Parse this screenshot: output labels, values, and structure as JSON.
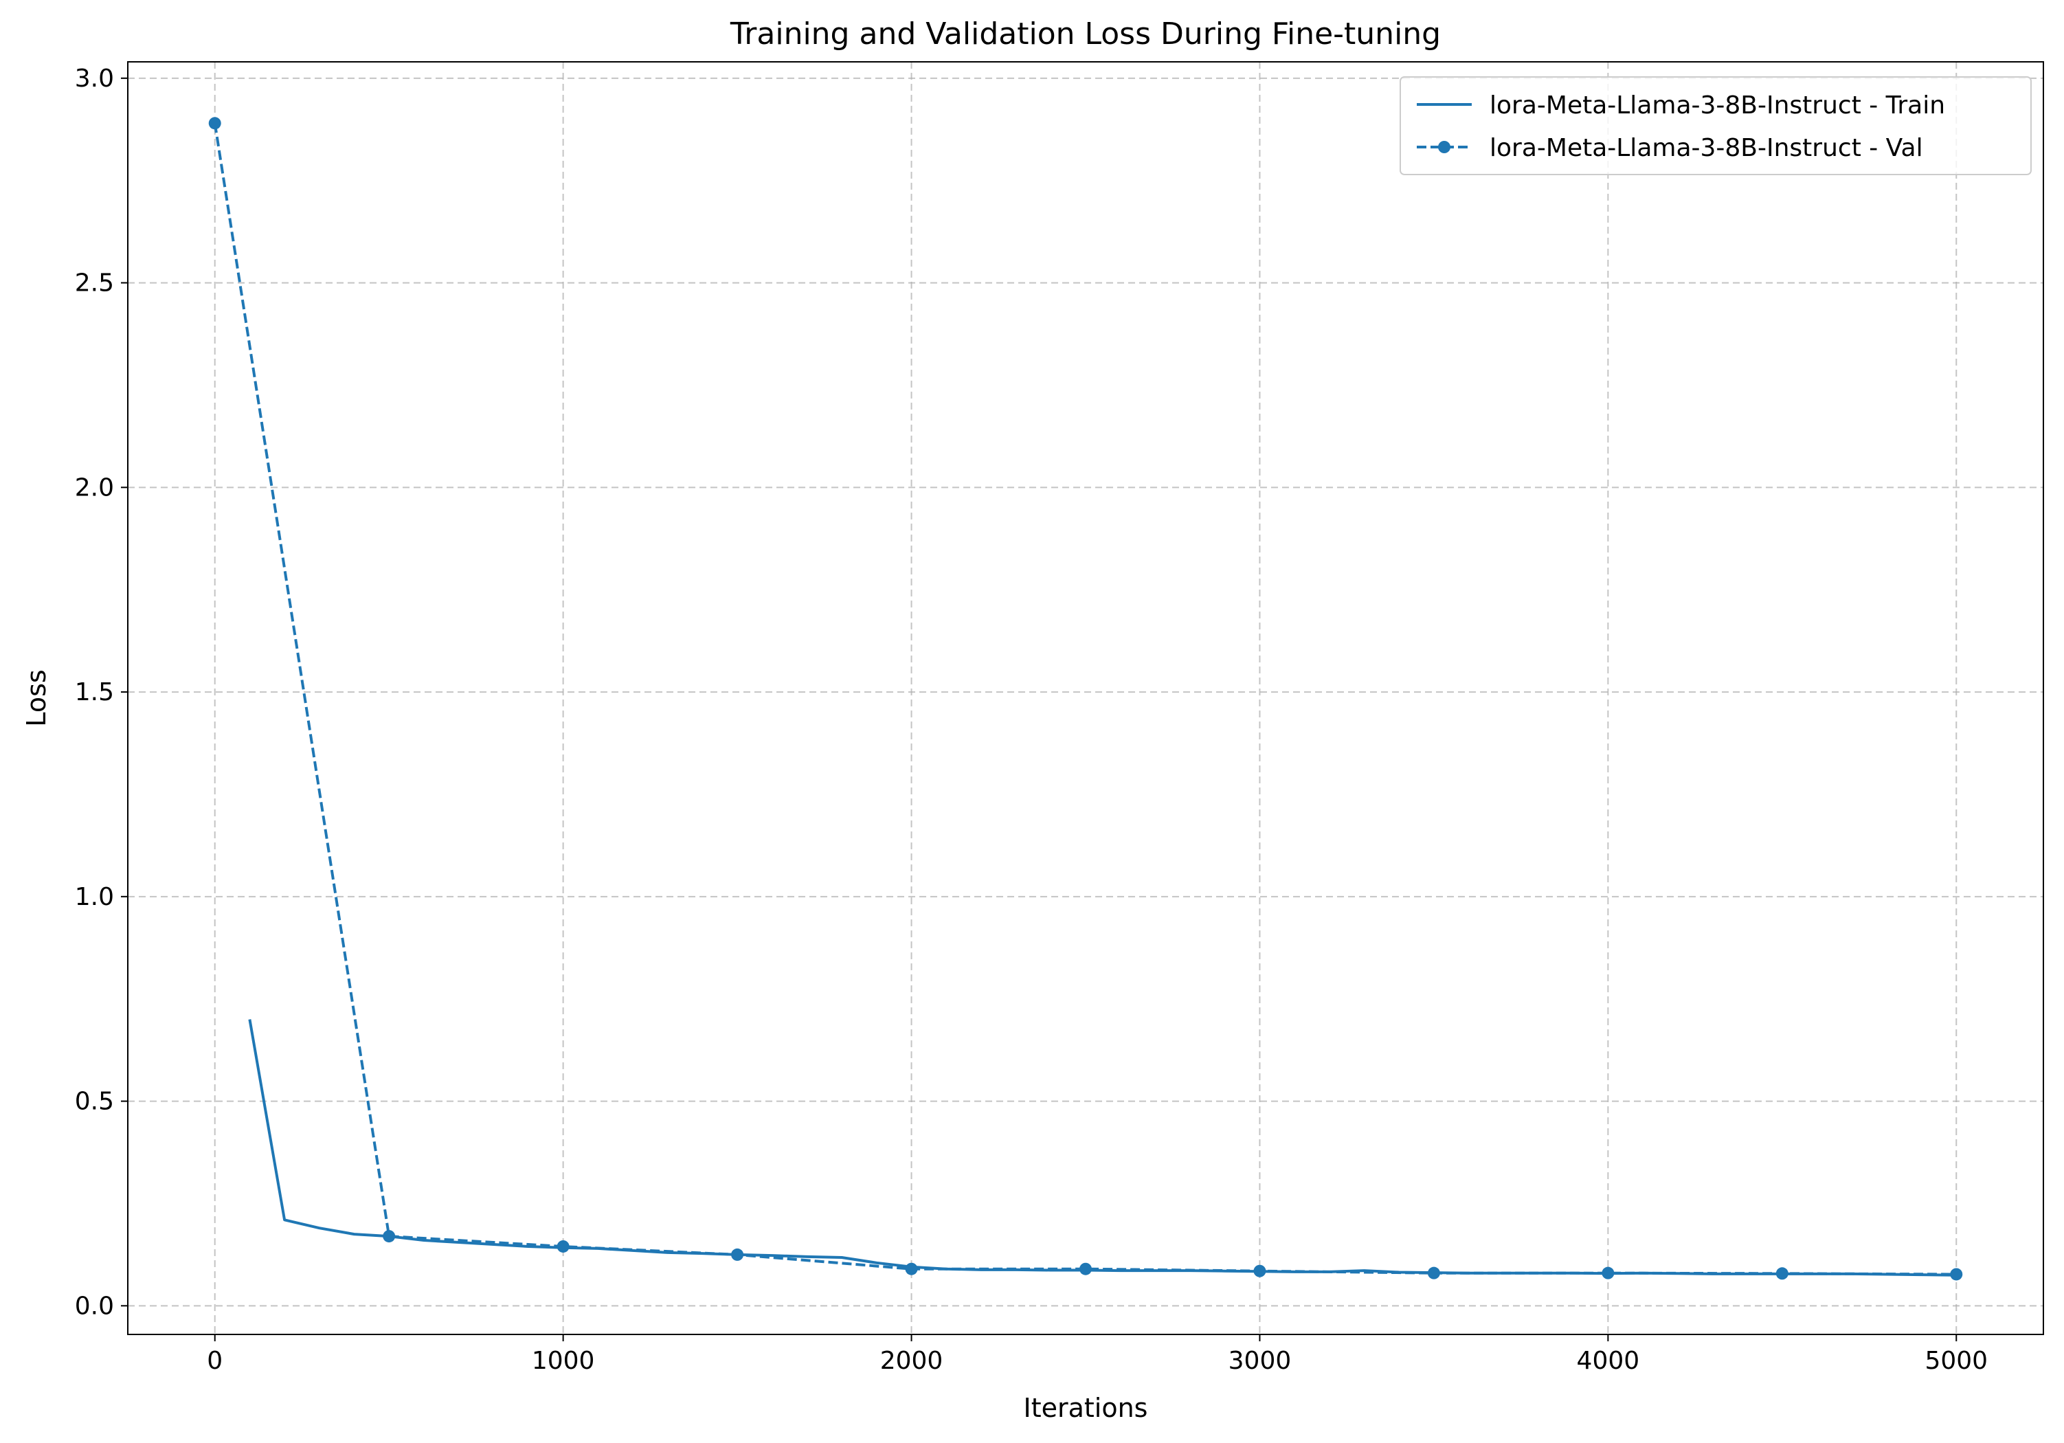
{
  "chart_data": {
    "type": "line",
    "title": "Training and Validation Loss During Fine-tuning",
    "xlabel": "Iterations",
    "ylabel": "Loss",
    "xlim": [
      -250,
      5250
    ],
    "ylim": [
      -0.07,
      3.04
    ],
    "xticks": [
      0,
      1000,
      2000,
      3000,
      4000,
      5000
    ],
    "xtick_labels": [
      "0",
      "1000",
      "2000",
      "3000",
      "4000",
      "5000"
    ],
    "yticks": [
      0.0,
      0.5,
      1.0,
      1.5,
      2.0,
      2.5,
      3.0
    ],
    "ytick_labels": [
      "0.0",
      "0.5",
      "1.0",
      "1.5",
      "2.0",
      "2.5",
      "3.0"
    ],
    "grid": true,
    "legend_position": "top-right",
    "series": [
      {
        "name": "lora-Meta-Llama-3-8B-Instruct - Train",
        "style": "solid",
        "markers": false,
        "color": "#1f77b4",
        "x": [
          100,
          200,
          300,
          400,
          500,
          600,
          700,
          800,
          900,
          1000,
          1100,
          1200,
          1300,
          1400,
          1500,
          1600,
          1700,
          1800,
          1900,
          2000,
          2100,
          2200,
          2300,
          2400,
          2500,
          2600,
          2700,
          2800,
          2900,
          3000,
          3100,
          3200,
          3300,
          3400,
          3500,
          3600,
          3700,
          3800,
          3900,
          4000,
          4100,
          4200,
          4300,
          4400,
          4500,
          4600,
          4700,
          4800,
          4900,
          5000
        ],
        "y": [
          0.7,
          0.21,
          0.19,
          0.175,
          0.17,
          0.16,
          0.155,
          0.15,
          0.145,
          0.142,
          0.14,
          0.135,
          0.13,
          0.128,
          0.125,
          0.123,
          0.12,
          0.118,
          0.105,
          0.095,
          0.09,
          0.088,
          0.088,
          0.087,
          0.087,
          0.086,
          0.086,
          0.086,
          0.085,
          0.084,
          0.083,
          0.083,
          0.086,
          0.082,
          0.081,
          0.08,
          0.08,
          0.08,
          0.08,
          0.079,
          0.08,
          0.079,
          0.078,
          0.078,
          0.078,
          0.078,
          0.078,
          0.077,
          0.076,
          0.075
        ]
      },
      {
        "name": "lora-Meta-Llama-3-8B-Instruct - Val",
        "style": "dashed",
        "markers": true,
        "color": "#1f77b4",
        "x": [
          0,
          500,
          1000,
          1500,
          2000,
          2500,
          3000,
          3500,
          4000,
          4500,
          5000
        ],
        "y": [
          2.89,
          0.17,
          0.145,
          0.125,
          0.09,
          0.09,
          0.085,
          0.08,
          0.08,
          0.079,
          0.077
        ]
      }
    ]
  }
}
